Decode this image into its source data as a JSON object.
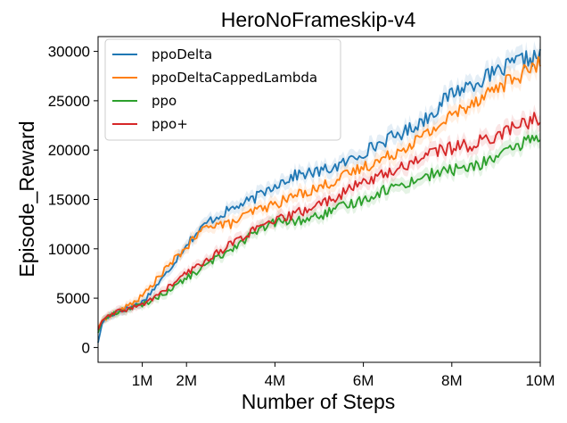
{
  "chart_data": {
    "type": "line",
    "title": "HeroNoFrameskip-v4",
    "xlabel": "Number of Steps",
    "ylabel": "Episode_Reward",
    "xlim": [
      0,
      10000000
    ],
    "ylim": [
      -1500,
      31500
    ],
    "x_ticks": [
      {
        "value": 1000000,
        "label": "1M"
      },
      {
        "value": 2000000,
        "label": "2M"
      },
      {
        "value": 4000000,
        "label": "4M"
      },
      {
        "value": 6000000,
        "label": "6M"
      },
      {
        "value": 8000000,
        "label": "8M"
      },
      {
        "value": 10000000,
        "label": "10M"
      }
    ],
    "y_ticks": [
      {
        "value": 0,
        "label": "0"
      },
      {
        "value": 5000,
        "label": "5000"
      },
      {
        "value": 10000,
        "label": "10000"
      },
      {
        "value": 15000,
        "label": "15000"
      },
      {
        "value": 20000,
        "label": "20000"
      },
      {
        "value": 25000,
        "label": "25000"
      },
      {
        "value": 30000,
        "label": "30000"
      }
    ],
    "grid": false,
    "legend_position": "top-left",
    "series": [
      {
        "name": "ppoDelta",
        "color": "#1f77b4",
        "x": [
          0,
          100000,
          300000,
          500000,
          1000000,
          1500000,
          2000000,
          2500000,
          3000000,
          3500000,
          4000000,
          4500000,
          5000000,
          5500000,
          6000000,
          6500000,
          7000000,
          7500000,
          8000000,
          8500000,
          9000000,
          9500000,
          10000000
        ],
        "values": [
          500,
          2600,
          3300,
          3700,
          4600,
          7200,
          10500,
          12800,
          14000,
          15000,
          16500,
          17500,
          17800,
          18500,
          19800,
          21000,
          22000,
          23500,
          25800,
          26800,
          27800,
          29000,
          29500
        ]
      },
      {
        "name": "ppoDeltaCappedLambda",
        "color": "#ff7f0e",
        "x": [
          0,
          100000,
          300000,
          500000,
          1000000,
          1500000,
          2000000,
          2500000,
          3000000,
          3500000,
          4000000,
          4500000,
          5000000,
          5500000,
          6000000,
          6500000,
          7000000,
          7500000,
          8000000,
          8500000,
          9000000,
          9500000,
          10000000
        ],
        "values": [
          2000,
          2800,
          3300,
          3700,
          5200,
          7800,
          10200,
          12500,
          12500,
          13800,
          14500,
          15500,
          16200,
          17200,
          18300,
          19200,
          20500,
          21800,
          23500,
          25000,
          26300,
          27500,
          28800
        ]
      },
      {
        "name": "ppo",
        "color": "#2ca02c",
        "x": [
          0,
          100000,
          300000,
          500000,
          1000000,
          1500000,
          2000000,
          2500000,
          3000000,
          3500000,
          4000000,
          4500000,
          5000000,
          5500000,
          6000000,
          6500000,
          7000000,
          7500000,
          8000000,
          8500000,
          9000000,
          9500000,
          9800000,
          10000000
        ],
        "values": [
          1500,
          2800,
          3300,
          3700,
          4300,
          5500,
          7000,
          8500,
          10000,
          11500,
          12700,
          12800,
          13300,
          14200,
          15000,
          16000,
          16700,
          17500,
          18000,
          18300,
          19300,
          20200,
          21500,
          20700
        ]
      },
      {
        "name": "ppo+",
        "color": "#d62728",
        "x": [
          0,
          100000,
          300000,
          500000,
          1000000,
          1500000,
          2000000,
          2500000,
          3000000,
          3500000,
          4000000,
          4500000,
          5000000,
          5500000,
          6000000,
          6500000,
          7000000,
          7500000,
          8000000,
          8500000,
          9000000,
          9500000,
          10000000
        ],
        "values": [
          1800,
          2800,
          3300,
          3700,
          4300,
          5800,
          7500,
          9000,
          10500,
          11800,
          12800,
          13600,
          14500,
          15500,
          16800,
          17600,
          18500,
          19800,
          20200,
          20600,
          21500,
          22500,
          23300
        ]
      }
    ]
  }
}
